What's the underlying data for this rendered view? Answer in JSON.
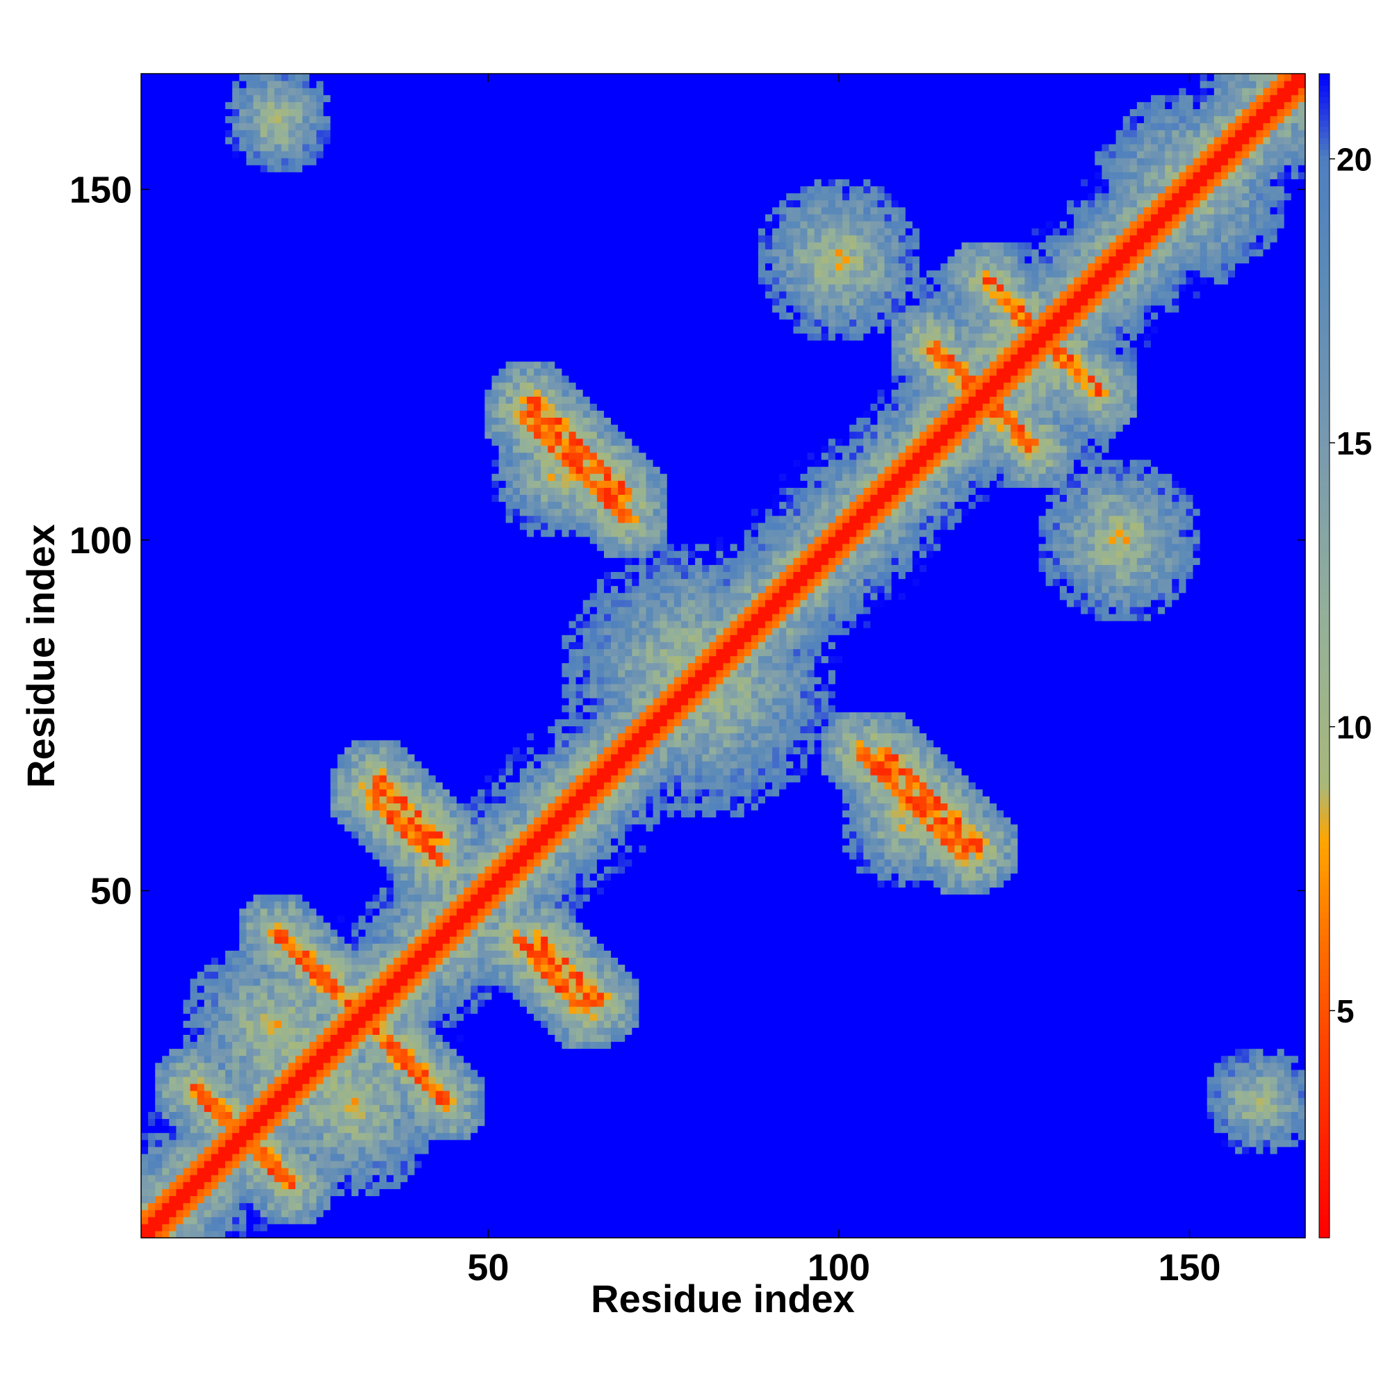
{
  "chart_data": {
    "type": "heatmap",
    "title": "",
    "xlabel": "Residue index",
    "ylabel": "Residue index",
    "xlim": [
      1,
      166
    ],
    "ylim": [
      1,
      166
    ],
    "x_ticks": [
      50,
      100,
      150
    ],
    "y_ticks": [
      50,
      100,
      150
    ],
    "x_tick_labels": [
      "50",
      "100",
      "150"
    ],
    "y_tick_labels": [
      "50",
      "100",
      "150"
    ],
    "grid": false,
    "colorbar": {
      "position": "right",
      "range": [
        1,
        21.5
      ],
      "ticks": [
        5,
        10,
        15,
        20
      ],
      "tick_labels": [
        "5",
        "10",
        "15",
        "20"
      ],
      "stops": [
        {
          "value": 1,
          "color": "#ff0000"
        },
        {
          "value": 2.7,
          "color": "#ff2200"
        },
        {
          "value": 4.5,
          "color": "#ff4500"
        },
        {
          "value": 6.2,
          "color": "#ff7000"
        },
        {
          "value": 8,
          "color": "#ffa500"
        },
        {
          "value": 9,
          "color": "#a8b87c"
        },
        {
          "value": 12,
          "color": "#93b09a"
        },
        {
          "value": 15,
          "color": "#7899b0"
        },
        {
          "value": 18,
          "color": "#5b8ab8"
        },
        {
          "value": 20,
          "color": "#4f7fc0"
        },
        {
          "value": 21.5,
          "color": "#0000ff"
        }
      ]
    },
    "description_of_values": "Symmetric residue-residue distance matrix; values near diagonal ~2-4, long-range contacts (orange/red) ~5-8, most distant pairs saturate at >20 (blue)",
    "contact_features": [
      {
        "from": [
          55,
          118
        ],
        "to": [
          70,
          103
        ],
        "value": 6
      },
      {
        "from": [
          33,
          64
        ],
        "to": [
          43,
          54
        ],
        "value": 6
      },
      {
        "from": [
          20,
          44
        ],
        "to": [
          43,
          21
        ],
        "value": 6
      },
      {
        "from": [
          57,
          43
        ],
        "to": [
          66,
          34
        ],
        "value": 6
      },
      {
        "from": [
          106,
          70
        ],
        "to": [
          120,
          56
        ],
        "value": 6
      },
      {
        "from": [
          113,
          128
        ],
        "to": [
          128,
          113
        ],
        "value": 6
      },
      {
        "from": [
          121,
          137
        ],
        "to": [
          137,
          121
        ],
        "value": 6
      },
      {
        "from": [
          8,
          22
        ],
        "to": [
          22,
          8
        ],
        "value": 6
      }
    ]
  },
  "colors": {
    "near": "#ff0000",
    "contact": "#ffa500",
    "mid": "#8fb0a0",
    "far": "#0000ff"
  }
}
